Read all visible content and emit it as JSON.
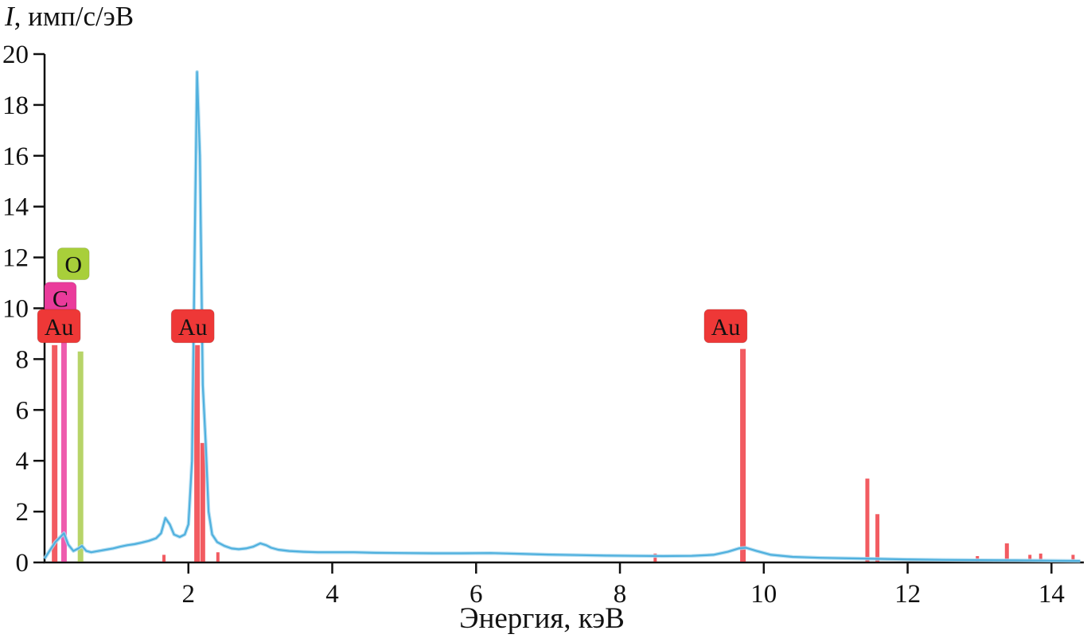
{
  "chart_data": {
    "type": "line",
    "xlabel": "Энергия, кэВ",
    "ylabel": {
      "italic": "I",
      "rest": ", имп/с/эВ"
    },
    "xlim": [
      0,
      14.45
    ],
    "ylim": [
      0,
      20
    ],
    "x_ticks": [
      2,
      4,
      6,
      8,
      10,
      12,
      14
    ],
    "y_ticks": [
      0,
      2,
      4,
      6,
      8,
      10,
      12,
      14,
      16,
      18,
      20
    ],
    "grid": false,
    "legend_position": "none",
    "colors": {
      "axis": "#111111",
      "spectrum": "#4fb0de",
      "spectrum_glow": "#a9d9f0",
      "au_line": "#ed1c24",
      "au_label_bg": "#ee3837",
      "c_line": "#e81c8e",
      "c_label_bg": "#ea3b9b",
      "o_line": "#9bc42e",
      "o_label_bg": "#a8cf3a",
      "label_text": "#1b1b1b"
    },
    "spectrum_points": [
      [
        0,
        0.15
      ],
      [
        0.08,
        0.5
      ],
      [
        0.15,
        0.8
      ],
      [
        0.22,
        1.0
      ],
      [
        0.27,
        1.15
      ],
      [
        0.33,
        0.7
      ],
      [
        0.4,
        0.45
      ],
      [
        0.47,
        0.55
      ],
      [
        0.52,
        0.65
      ],
      [
        0.58,
        0.45
      ],
      [
        0.65,
        0.4
      ],
      [
        0.75,
        0.45
      ],
      [
        0.85,
        0.5
      ],
      [
        0.95,
        0.55
      ],
      [
        1.05,
        0.62
      ],
      [
        1.15,
        0.68
      ],
      [
        1.25,
        0.72
      ],
      [
        1.35,
        0.78
      ],
      [
        1.45,
        0.85
      ],
      [
        1.55,
        0.95
      ],
      [
        1.62,
        1.15
      ],
      [
        1.68,
        1.75
      ],
      [
        1.74,
        1.5
      ],
      [
        1.8,
        1.1
      ],
      [
        1.88,
        1.0
      ],
      [
        1.95,
        1.1
      ],
      [
        2.0,
        1.5
      ],
      [
        2.05,
        4.0
      ],
      [
        2.09,
        13.0
      ],
      [
        2.12,
        19.3
      ],
      [
        2.16,
        16.0
      ],
      [
        2.2,
        7.0
      ],
      [
        2.24,
        4.7
      ],
      [
        2.28,
        2.0
      ],
      [
        2.33,
        1.1
      ],
      [
        2.4,
        0.8
      ],
      [
        2.5,
        0.65
      ],
      [
        2.6,
        0.55
      ],
      [
        2.7,
        0.52
      ],
      [
        2.8,
        0.55
      ],
      [
        2.9,
        0.62
      ],
      [
        3.0,
        0.75
      ],
      [
        3.08,
        0.68
      ],
      [
        3.15,
        0.58
      ],
      [
        3.25,
        0.5
      ],
      [
        3.4,
        0.45
      ],
      [
        3.6,
        0.42
      ],
      [
        3.8,
        0.4
      ],
      [
        4.0,
        0.4
      ],
      [
        4.3,
        0.4
      ],
      [
        4.6,
        0.38
      ],
      [
        5.0,
        0.37
      ],
      [
        5.4,
        0.36
      ],
      [
        5.8,
        0.36
      ],
      [
        6.2,
        0.37
      ],
      [
        6.6,
        0.34
      ],
      [
        7.0,
        0.31
      ],
      [
        7.4,
        0.29
      ],
      [
        7.8,
        0.27
      ],
      [
        8.2,
        0.26
      ],
      [
        8.6,
        0.25
      ],
      [
        9.0,
        0.26
      ],
      [
        9.3,
        0.3
      ],
      [
        9.5,
        0.42
      ],
      [
        9.65,
        0.55
      ],
      [
        9.75,
        0.58
      ],
      [
        9.9,
        0.45
      ],
      [
        10.1,
        0.3
      ],
      [
        10.4,
        0.22
      ],
      [
        10.8,
        0.18
      ],
      [
        11.2,
        0.16
      ],
      [
        11.6,
        0.14
      ],
      [
        12.0,
        0.12
      ],
      [
        12.5,
        0.1
      ],
      [
        13.0,
        0.09
      ],
      [
        13.5,
        0.08
      ],
      [
        14.0,
        0.07
      ],
      [
        14.4,
        0.06
      ]
    ],
    "element_markers": [
      {
        "element": "Au",
        "color_key": "au_line",
        "lines": [
          {
            "x": 0.14,
            "h": 8.55,
            "w": 7
          },
          {
            "x": 1.66,
            "h": 0.3,
            "w": 4
          },
          {
            "x": 2.12,
            "h": 8.55,
            "w": 7
          },
          {
            "x": 2.2,
            "h": 4.7,
            "w": 6
          },
          {
            "x": 2.41,
            "h": 0.4,
            "w": 4
          },
          {
            "x": 8.49,
            "h": 0.35,
            "w": 4
          },
          {
            "x": 9.71,
            "h": 8.4,
            "w": 7
          },
          {
            "x": 11.44,
            "h": 3.3,
            "w": 5
          },
          {
            "x": 11.58,
            "h": 1.9,
            "w": 5
          },
          {
            "x": 12.97,
            "h": 0.25,
            "w": 4
          },
          {
            "x": 13.38,
            "h": 0.75,
            "w": 5
          },
          {
            "x": 13.7,
            "h": 0.3,
            "w": 4
          },
          {
            "x": 13.85,
            "h": 0.35,
            "w": 4
          },
          {
            "x": 14.3,
            "h": 0.3,
            "w": 4
          }
        ]
      },
      {
        "element": "C",
        "color_key": "c_line",
        "lines": [
          {
            "x": 0.27,
            "h": 9.75,
            "w": 7
          }
        ]
      },
      {
        "element": "O",
        "color_key": "o_line",
        "lines": [
          {
            "x": 0.5,
            "h": 8.3,
            "w": 7
          }
        ]
      }
    ],
    "element_labels": [
      {
        "text": "O",
        "x": 0.4,
        "y": 11.75,
        "bg_key": "o_label_bg"
      },
      {
        "text": "C",
        "x": 0.22,
        "y": 10.4,
        "bg_key": "c_label_bg"
      },
      {
        "text": "Au",
        "x": 0.2,
        "y": 9.3,
        "bg_key": "au_label_bg"
      },
      {
        "text": "Au",
        "x": 2.06,
        "y": 9.3,
        "bg_key": "au_label_bg"
      },
      {
        "text": "Au",
        "x": 9.47,
        "y": 9.3,
        "bg_key": "au_label_bg"
      }
    ]
  }
}
